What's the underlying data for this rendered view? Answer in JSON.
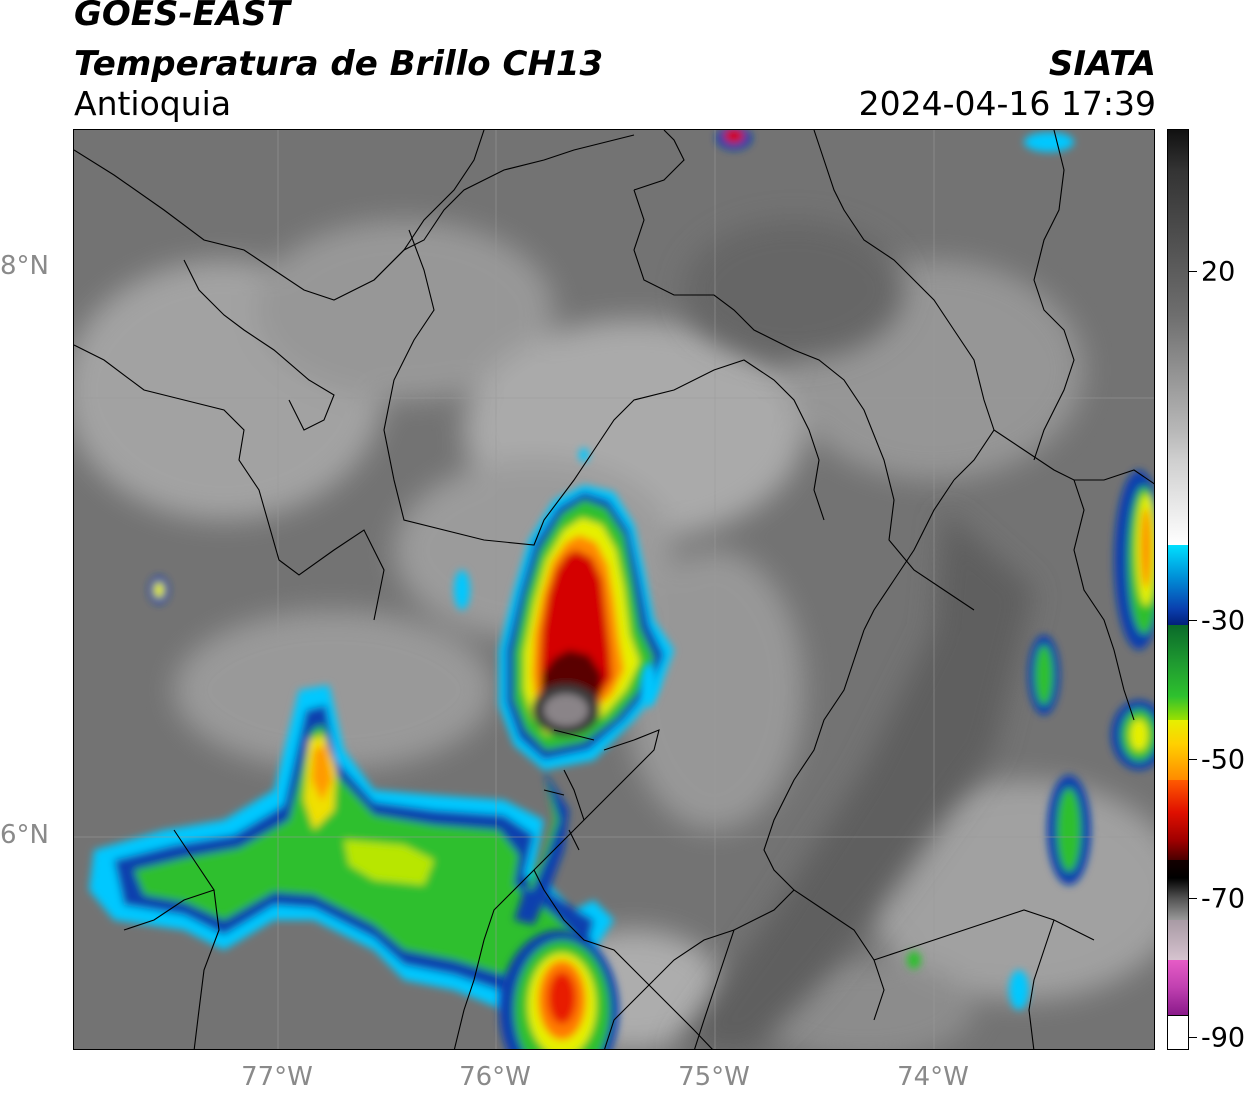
{
  "header": {
    "satellite": "GOES-EAST",
    "product": "Temperatura de Brillo CH13",
    "region": "Antioquia",
    "organization": "SIATA",
    "datetime": "2024-04-16 17:39"
  },
  "map": {
    "lat_labels": [
      "8°N",
      "6°N"
    ],
    "lon_labels": [
      "77°W",
      "76°W",
      "75°W",
      "74°W"
    ]
  },
  "colorbar": {
    "tick_labels": [
      "20",
      "-30",
      "-50",
      "-70",
      "-90"
    ],
    "range": [
      -90,
      40
    ],
    "colors": {
      "warm_gray": "#6e6e6e",
      "white": "#f4f4f4",
      "cyan": "#00cfff",
      "blue": "#0b3fa8",
      "green": "#2ec12e",
      "yellow": "#e6f000",
      "orange": "#ff8a00",
      "red": "#d40000",
      "dark_red": "#4a0000",
      "black": "#0a0a0a",
      "mauve": "#c8a0b8",
      "magenta": "#e040c0",
      "purple": "#8a1a8a"
    }
  }
}
